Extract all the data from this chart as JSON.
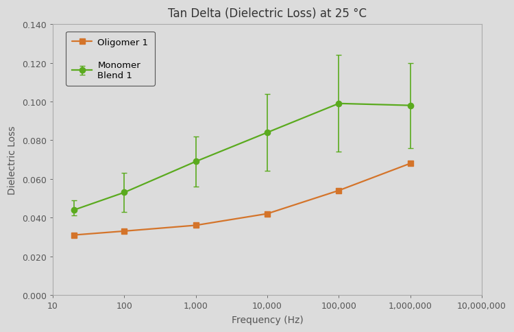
{
  "title": "Tan Delta (Dielectric Loss) at 25 °C",
  "xlabel": "Frequency (Hz)",
  "ylabel": "Dielectric Loss",
  "plot_bg_color": "#dcdcdc",
  "fig_bg_color": "#dcdcdc",
  "frequencies": [
    20,
    100,
    1000,
    10000,
    100000,
    1000000
  ],
  "oligomer1_y": [
    0.031,
    0.033,
    0.036,
    0.042,
    0.054,
    0.068
  ],
  "monomer_blend1_y": [
    0.044,
    0.053,
    0.069,
    0.084,
    0.099,
    0.098
  ],
  "monomer_blend1_yerr_up": [
    0.005,
    0.01,
    0.013,
    0.02,
    0.025,
    0.022
  ],
  "monomer_blend1_yerr_dn": [
    0.003,
    0.01,
    0.013,
    0.02,
    0.025,
    0.022
  ],
  "oligomer1_color": "#d4742a",
  "monomer_blend1_color": "#5aaa1e",
  "ylim": [
    0.0,
    0.14
  ],
  "yticks": [
    0.0,
    0.02,
    0.04,
    0.06,
    0.08,
    0.1,
    0.12,
    0.14
  ],
  "legend_labels": [
    "Oligomer 1",
    "Monomer\nBlend 1"
  ],
  "xlim_left": 10,
  "xlim_right": 10000000,
  "xtick_positions": [
    10,
    100,
    1000,
    10000,
    100000,
    1000000,
    10000000
  ],
  "xtick_labels": [
    "10",
    "100",
    "1,000",
    "10,000",
    "100,000",
    "1,000,000",
    "10,000,000"
  ],
  "title_fontsize": 12,
  "axis_label_fontsize": 10,
  "tick_fontsize": 9
}
